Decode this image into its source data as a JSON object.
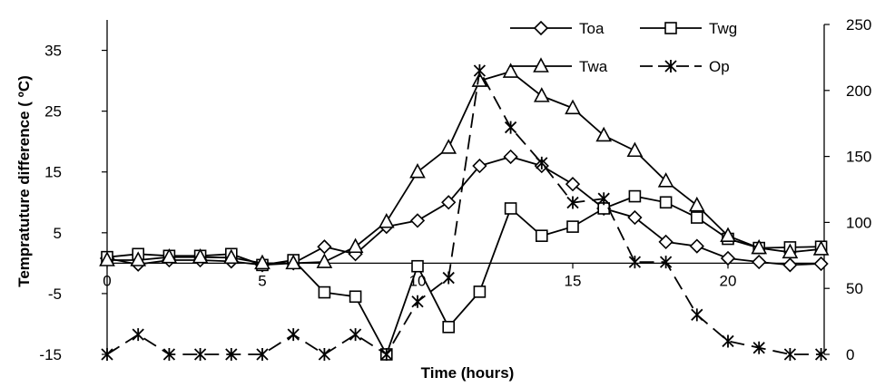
{
  "chart_data": {
    "type": "line",
    "title": "",
    "xlabel": "Time (hours)",
    "ylabel": "Tempratuture difference ( ºC)",
    "xlim": [
      0,
      23
    ],
    "ylim": [
      -15,
      40
    ],
    "y2lim": [
      0,
      250
    ],
    "x_ticks": [
      "0",
      "5",
      "10",
      "15",
      "20"
    ],
    "y_ticks": [
      "-15",
      "-5",
      "5",
      "15",
      "25",
      "35"
    ],
    "y2_ticks": [
      "0",
      "50",
      "100",
      "150",
      "200",
      "250"
    ],
    "grid": false,
    "legend_position": "top-right",
    "x": [
      0,
      1,
      2,
      3,
      4,
      5,
      6,
      7,
      8,
      9,
      10,
      11,
      12,
      13,
      14,
      15,
      16,
      17,
      18,
      19,
      20,
      21,
      22,
      23
    ],
    "series": [
      {
        "name": "Toa",
        "axis": "left",
        "marker": "diamond",
        "dash": "solid",
        "values": [
          0.8,
          -0.2,
          0.5,
          0.5,
          0.3,
          -0.3,
          0,
          2.7,
          1.5,
          6,
          7,
          10,
          16,
          17.5,
          16,
          13,
          9,
          7.5,
          3.5,
          2.8,
          0.8,
          0.2,
          -0.3,
          -0.1
        ]
      },
      {
        "name": "Twg",
        "axis": "left",
        "marker": "square",
        "dash": "solid",
        "values": [
          1,
          1.5,
          1.2,
          1.2,
          1.5,
          -0.3,
          0.5,
          -4.8,
          -5.5,
          -15,
          -0.5,
          -10.5,
          -4.7,
          9,
          4.5,
          6,
          9,
          11,
          10,
          7.5,
          4,
          2.5,
          2.6,
          2.7
        ]
      },
      {
        "name": "Twa",
        "axis": "left",
        "marker": "triangle",
        "dash": "solid",
        "values": [
          0.5,
          0.5,
          1,
          1,
          0.9,
          0,
          0,
          0.2,
          2.7,
          6.8,
          15,
          19,
          30,
          31.5,
          27.5,
          25.5,
          21,
          18.5,
          13.5,
          9.5,
          4.5,
          2.5,
          1.8,
          2.3
        ]
      },
      {
        "name": "Op",
        "axis": "right",
        "marker": "star",
        "dash": "dashed",
        "values": [
          0,
          15,
          0,
          0,
          0,
          0,
          15,
          0,
          15,
          0,
          40,
          58,
          215,
          172,
          145,
          115,
          118,
          70,
          70,
          30,
          10,
          5,
          0,
          0
        ]
      }
    ]
  }
}
